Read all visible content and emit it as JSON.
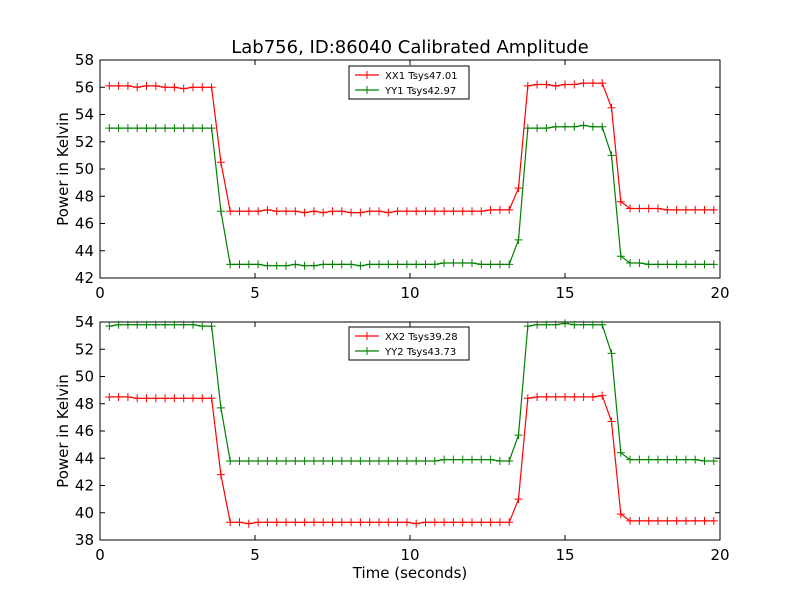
{
  "chart_data": [
    {
      "type": "line",
      "title": "Lab756, ID:86040 Calibrated Amplitude",
      "xlabel": "",
      "ylabel": "Power in Kelvin",
      "xlim": [
        0,
        20
      ],
      "ylim": [
        42,
        58
      ],
      "xticks": [
        "0",
        "5",
        "10",
        "15",
        "20"
      ],
      "yticks": [
        "42",
        "44",
        "46",
        "48",
        "50",
        "52",
        "54",
        "56",
        "58"
      ],
      "legend_placement": "upper-center",
      "grid": false,
      "x": [
        0.3,
        0.6,
        0.9,
        1.2,
        1.5,
        1.8,
        2.1,
        2.4,
        2.7,
        3.0,
        3.3,
        3.6,
        3.9,
        4.2,
        4.5,
        4.8,
        5.1,
        5.4,
        5.7,
        6.0,
        6.3,
        6.6,
        6.9,
        7.2,
        7.5,
        7.8,
        8.1,
        8.4,
        8.7,
        9.0,
        9.3,
        9.6,
        9.9,
        10.2,
        10.5,
        10.8,
        11.1,
        11.4,
        11.7,
        12.0,
        12.3,
        12.6,
        12.9,
        13.2,
        13.5,
        13.8,
        14.1,
        14.4,
        14.7,
        15.0,
        15.3,
        15.6,
        15.9,
        16.2,
        16.5,
        16.8,
        17.1,
        17.4,
        17.7,
        18.0,
        18.3,
        18.6,
        18.9,
        19.2,
        19.5,
        19.8
      ],
      "series": [
        {
          "name": "XX1 Tsys47.01",
          "color": "#ff0000",
          "values": [
            56.1,
            56.1,
            56.1,
            56.0,
            56.1,
            56.1,
            56.0,
            56.0,
            55.9,
            56.0,
            56.0,
            56.0,
            50.5,
            46.9,
            46.9,
            46.9,
            46.9,
            47.0,
            46.9,
            46.9,
            46.9,
            46.8,
            46.9,
            46.8,
            46.9,
            46.9,
            46.8,
            46.8,
            46.9,
            46.9,
            46.8,
            46.9,
            46.9,
            46.9,
            46.9,
            46.9,
            46.9,
            46.9,
            46.9,
            46.9,
            46.9,
            47.0,
            47.0,
            47.0,
            48.6,
            56.1,
            56.2,
            56.2,
            56.1,
            56.2,
            56.2,
            56.3,
            56.3,
            56.3,
            54.5,
            47.6,
            47.1,
            47.1,
            47.1,
            47.1,
            47.0,
            47.0,
            47.0,
            47.0,
            47.0,
            47.0
          ]
        },
        {
          "name": "YY1 Tsys42.97",
          "color": "#008000",
          "values": [
            53.0,
            53.0,
            53.0,
            53.0,
            53.0,
            53.0,
            53.0,
            53.0,
            53.0,
            53.0,
            53.0,
            53.0,
            46.9,
            43.0,
            43.0,
            43.0,
            43.0,
            42.9,
            42.9,
            42.9,
            43.0,
            42.9,
            42.9,
            43.0,
            43.0,
            43.0,
            43.0,
            42.9,
            43.0,
            43.0,
            43.0,
            43.0,
            43.0,
            43.0,
            43.0,
            43.0,
            43.1,
            43.1,
            43.1,
            43.1,
            43.0,
            43.0,
            43.0,
            43.0,
            44.8,
            53.0,
            53.0,
            53.0,
            53.1,
            53.1,
            53.1,
            53.2,
            53.1,
            53.1,
            51.0,
            43.6,
            43.1,
            43.1,
            43.0,
            43.0,
            43.0,
            43.0,
            43.0,
            43.0,
            43.0,
            43.0
          ]
        }
      ]
    },
    {
      "type": "line",
      "title": "",
      "xlabel": "Time (seconds)",
      "ylabel": "Power in Kelvin",
      "xlim": [
        0,
        20
      ],
      "ylim": [
        38,
        54
      ],
      "xticks": [
        "0",
        "5",
        "10",
        "15",
        "20"
      ],
      "yticks": [
        "38",
        "40",
        "42",
        "44",
        "46",
        "48",
        "50",
        "52",
        "54"
      ],
      "legend_placement": "upper-center",
      "grid": false,
      "x": [
        0.3,
        0.6,
        0.9,
        1.2,
        1.5,
        1.8,
        2.1,
        2.4,
        2.7,
        3.0,
        3.3,
        3.6,
        3.9,
        4.2,
        4.5,
        4.8,
        5.1,
        5.4,
        5.7,
        6.0,
        6.3,
        6.6,
        6.9,
        7.2,
        7.5,
        7.8,
        8.1,
        8.4,
        8.7,
        9.0,
        9.3,
        9.6,
        9.9,
        10.2,
        10.5,
        10.8,
        11.1,
        11.4,
        11.7,
        12.0,
        12.3,
        12.6,
        12.9,
        13.2,
        13.5,
        13.8,
        14.1,
        14.4,
        14.7,
        15.0,
        15.3,
        15.6,
        15.9,
        16.2,
        16.5,
        16.8,
        17.1,
        17.4,
        17.7,
        18.0,
        18.3,
        18.6,
        18.9,
        19.2,
        19.5,
        19.8
      ],
      "series": [
        {
          "name": "XX2 Tsys39.28",
          "color": "#ff0000",
          "values": [
            48.5,
            48.5,
            48.5,
            48.4,
            48.4,
            48.4,
            48.4,
            48.4,
            48.4,
            48.4,
            48.4,
            48.4,
            42.8,
            39.3,
            39.3,
            39.2,
            39.3,
            39.3,
            39.3,
            39.3,
            39.3,
            39.3,
            39.3,
            39.3,
            39.3,
            39.3,
            39.3,
            39.3,
            39.3,
            39.3,
            39.3,
            39.3,
            39.3,
            39.2,
            39.3,
            39.3,
            39.3,
            39.3,
            39.3,
            39.3,
            39.3,
            39.3,
            39.3,
            39.3,
            41.0,
            48.4,
            48.5,
            48.5,
            48.5,
            48.5,
            48.5,
            48.5,
            48.5,
            48.6,
            46.7,
            39.9,
            39.4,
            39.4,
            39.4,
            39.4,
            39.4,
            39.4,
            39.4,
            39.4,
            39.4,
            39.4
          ]
        },
        {
          "name": "YY2 Tsys43.73",
          "color": "#008000",
          "values": [
            53.7,
            53.8,
            53.8,
            53.8,
            53.8,
            53.8,
            53.8,
            53.8,
            53.8,
            53.8,
            53.7,
            53.7,
            47.7,
            43.8,
            43.8,
            43.8,
            43.8,
            43.8,
            43.8,
            43.8,
            43.8,
            43.8,
            43.8,
            43.8,
            43.8,
            43.8,
            43.8,
            43.8,
            43.8,
            43.8,
            43.8,
            43.8,
            43.8,
            43.8,
            43.8,
            43.8,
            43.9,
            43.9,
            43.9,
            43.9,
            43.9,
            43.9,
            43.8,
            43.8,
            45.7,
            53.7,
            53.8,
            53.8,
            53.8,
            53.9,
            53.8,
            53.8,
            53.8,
            53.8,
            51.7,
            44.4,
            43.9,
            43.9,
            43.9,
            43.9,
            43.9,
            43.9,
            43.9,
            43.9,
            43.8,
            43.8
          ]
        }
      ]
    }
  ]
}
